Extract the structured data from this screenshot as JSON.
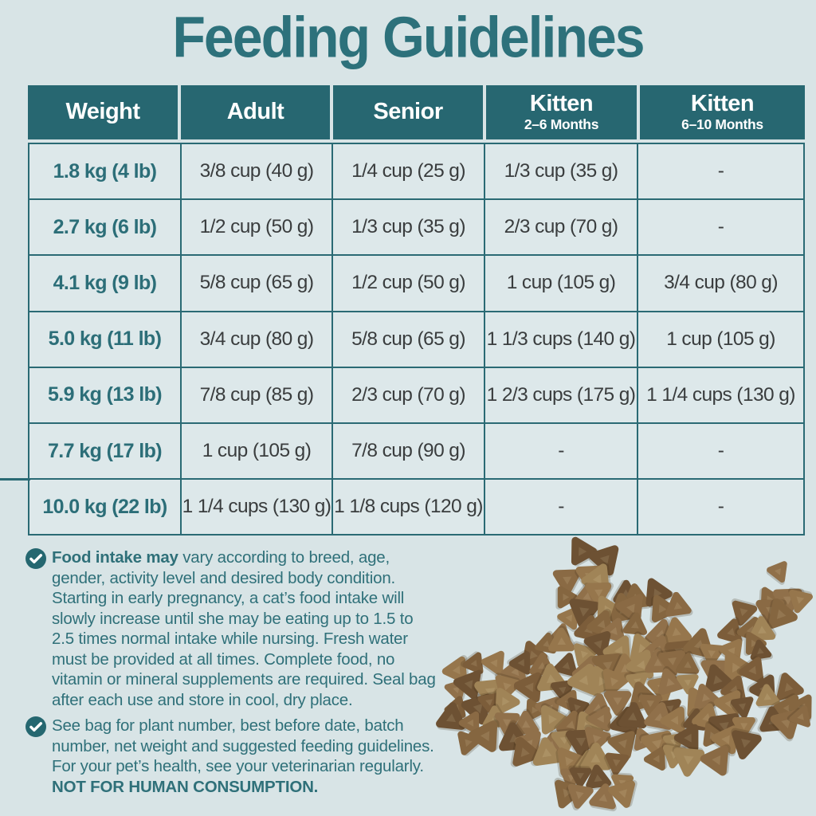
{
  "title": "Feeding Guidelines",
  "table": {
    "headers": [
      {
        "label": "Weight",
        "sub": ""
      },
      {
        "label": "Adult",
        "sub": ""
      },
      {
        "label": "Senior",
        "sub": ""
      },
      {
        "label": "Kitten",
        "sub": "2–6 Months"
      },
      {
        "label": "Kitten",
        "sub": "6–10 Months"
      }
    ],
    "rows": [
      [
        "1.8 kg (4 lb)",
        "3/8 cup (40 g)",
        "1/4 cup (25 g)",
        "1/3 cup (35 g)",
        "-"
      ],
      [
        "2.7 kg (6 lb)",
        "1/2 cup (50 g)",
        "1/3 cup (35 g)",
        "2/3 cup (70 g)",
        "-"
      ],
      [
        "4.1 kg (9 lb)",
        "5/8 cup (65 g)",
        "1/2 cup (50 g)",
        "1 cup (105 g)",
        "3/4 cup (80 g)"
      ],
      [
        "5.0 kg (11 lb)",
        "3/4 cup (80 g)",
        "5/8 cup (65 g)",
        "1 1/3 cups (140 g)",
        "1 cup (105 g)"
      ],
      [
        "5.9 kg (13 lb)",
        "7/8 cup (85 g)",
        "2/3 cup (70 g)",
        "1 2/3 cups (175 g)",
        "1 1/4 cups (130 g)"
      ],
      [
        "7.7 kg (17 lb)",
        "1 cup (105 g)",
        "7/8 cup (90 g)",
        "-",
        "-"
      ],
      [
        "10.0 kg (22 lb)",
        "1 1/4 cups (130 g)",
        "1 1/8 cups (120 g)",
        "-",
        "-"
      ]
    ]
  },
  "notes": [
    {
      "lead_bold": "Food intake may",
      "text": " vary according to breed, age, gender, activity level and desired body condition. Starting in early pregnancy, a cat’s food intake will slowly increase until she may be eating up to 1.5 to 2.5 times normal intake while nursing. Fresh water must be provided at all times. Complete food, no vitamin or mineral supplements are required. Seal bag after each use and store in cool, dry place.",
      "tail_bold": ""
    },
    {
      "lead_bold": "",
      "text": "See bag for plant number, best before date, batch number, net weight and suggested feeding guidelines. For your pet’s health, see your veterinarian regularly. ",
      "tail_bold": "NOT FOR HUMAN CONSUMPTION."
    }
  ],
  "colors": {
    "page_background": "#d8e4e6",
    "cell_background": "#dde8ea",
    "header_background": "#276771",
    "border_teal": "#2a6a74",
    "title_teal": "#2d717b",
    "note_text_teal": "#2f7079",
    "cell_text": "#3a3d3e",
    "kibble_palette": [
      "#8a6a44",
      "#7c5d3a",
      "#96764c",
      "#6d5133",
      "#a08457",
      "#856640",
      "#90704a"
    ]
  }
}
